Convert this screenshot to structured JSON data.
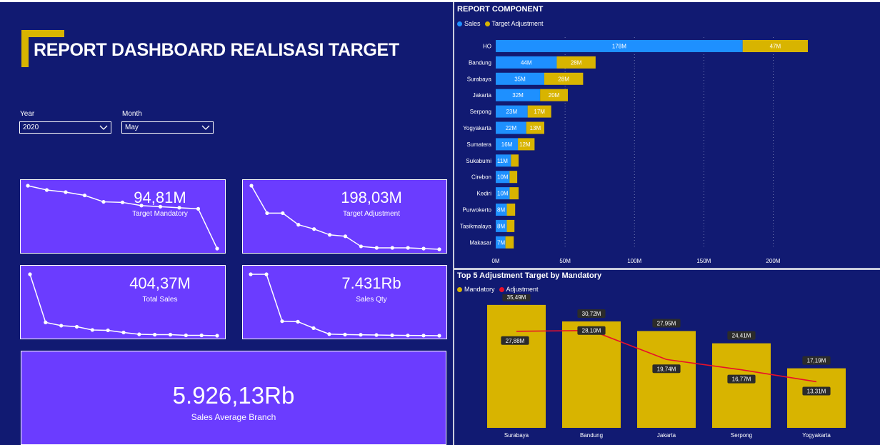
{
  "dashboard": {
    "title": "REPORT DASHBOARD REALISASI TARGET",
    "colors": {
      "background": "#111a72",
      "card": "#6b3cff",
      "accent": "#d8b400",
      "sales": "#1e90ff",
      "adjustment": "#d8b400",
      "line": "#e8102a"
    }
  },
  "filters": {
    "year": {
      "label": "Year",
      "value": "2020"
    },
    "month": {
      "label": "Month",
      "value": "May"
    }
  },
  "cards": {
    "target_mandatory": {
      "value": "94,81M",
      "label": "Target Mandatory",
      "trend": [
        12,
        11.2,
        10.8,
        10.2,
        9.0,
        8.9,
        8.3,
        8.1,
        7.9,
        7.7,
        0.3
      ]
    },
    "target_adjustment": {
      "value": "198,03M",
      "label": "Target Adjustment",
      "trend": [
        47,
        28,
        28,
        20,
        17,
        13,
        12,
        5,
        4,
        4,
        4,
        3.5,
        3
      ]
    },
    "total_sales": {
      "value": "404,37M",
      "label": "Total Sales",
      "trend": [
        178,
        44,
        35,
        32,
        23,
        22,
        16,
        11,
        10,
        10,
        8,
        8,
        7
      ]
    },
    "sales_qty": {
      "value": "7.431Rb",
      "label": "Sales Qty",
      "trend": [
        1500,
        1500,
        480,
        470,
        330,
        200,
        190,
        185,
        180,
        175,
        170,
        168,
        165
      ]
    },
    "sales_average_branch": {
      "value": "5.926,13Rb",
      "label": "Sales Average Branch"
    }
  },
  "chart_data": [
    {
      "type": "bar",
      "orientation": "horizontal",
      "stacked": true,
      "title": "REPORT COMPONENT",
      "legend": [
        "Sales",
        "Target Adjustment"
      ],
      "categories": [
        "HO",
        "Bandung",
        "Surabaya",
        "Jakarta",
        "Serpong",
        "Yogyakarta",
        "Sumatera",
        "Sukabumi",
        "Cirebon",
        "Kediri",
        "Purwokerto",
        "Tasikmalaya",
        "Makasar"
      ],
      "series": [
        {
          "name": "Sales",
          "values": [
            178,
            44,
            35,
            32,
            23,
            22,
            16,
            11,
            10,
            10,
            8,
            8,
            7
          ],
          "labels": [
            "178M",
            "44M",
            "35M",
            "32M",
            "23M",
            "22M",
            "16M",
            "11M",
            "10M",
            "10M",
            "8M",
            "8M",
            "7M"
          ]
        },
        {
          "name": "Target Adjustment",
          "values": [
            47,
            28,
            28,
            20,
            17,
            13,
            12,
            5.5,
            5.5,
            6.5,
            6,
            5.5,
            6
          ],
          "labels": [
            "47M",
            "28M",
            "28M",
            "20M",
            "17M",
            "13M",
            "12M",
            "",
            "",
            "",
            "",
            "",
            ""
          ]
        }
      ],
      "xlim": [
        0,
        225
      ],
      "xticks": [
        0,
        50,
        100,
        150,
        200
      ],
      "xtick_labels": [
        "0M",
        "50M",
        "100M",
        "150M",
        "200M"
      ]
    },
    {
      "type": "bar",
      "combo_line": true,
      "title": "Top 5 Adjustment Target by Mandatory",
      "legend": [
        "Mandatory",
        "Adjustment"
      ],
      "categories": [
        "Surabaya",
        "Bandung",
        "Jakarta",
        "Serpong",
        "Yogyakarta"
      ],
      "series": [
        {
          "name": "Mandatory",
          "type": "bar",
          "values": [
            35.49,
            30.72,
            27.95,
            24.41,
            17.19
          ],
          "labels": [
            "35,49M",
            "30,72M",
            "27,95M",
            "24,41M",
            "17,19M"
          ]
        },
        {
          "name": "Adjustment",
          "type": "line",
          "values": [
            27.88,
            28.1,
            19.74,
            16.77,
            13.31
          ],
          "labels": [
            "27,88M",
            "28,10M",
            "19,74M",
            "16,77M",
            "13,31M"
          ]
        }
      ],
      "ylim": [
        0,
        40
      ]
    }
  ]
}
